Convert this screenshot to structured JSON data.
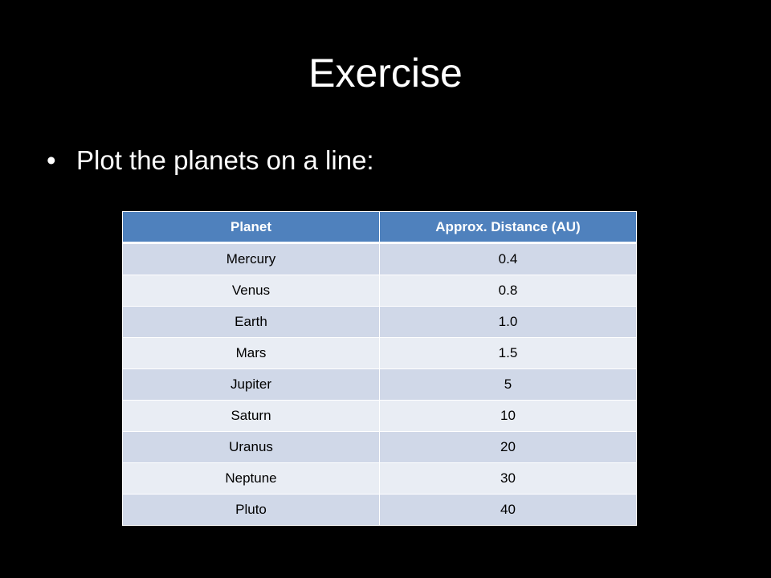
{
  "slide": {
    "title": "Exercise",
    "bullets": [
      "Plot the planets on a line:"
    ]
  },
  "table": {
    "header": [
      "Planet",
      "Approx. Distance (AU)"
    ],
    "rows": [
      [
        "Mercury",
        "0.4"
      ],
      [
        "Venus",
        "0.8"
      ],
      [
        "Earth",
        "1.0"
      ],
      [
        "Mars",
        "1.5"
      ],
      [
        "Jupiter",
        "5"
      ],
      [
        "Saturn",
        "10"
      ],
      [
        "Uranus",
        "20"
      ],
      [
        "Neptune",
        "30"
      ],
      [
        "Pluto",
        "40"
      ]
    ]
  }
}
